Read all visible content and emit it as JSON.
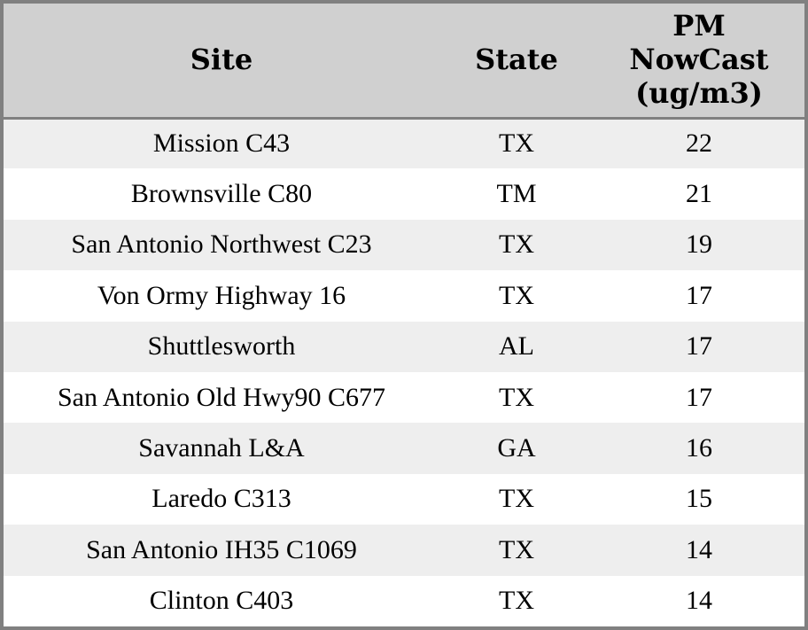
{
  "chart_data": {
    "type": "table",
    "columns": [
      {
        "id": "site",
        "label": "Site"
      },
      {
        "id": "state",
        "label": "State"
      },
      {
        "id": "pm_nowcast",
        "label": "PM\nNowCast\n(ug/m3)"
      }
    ],
    "rows": [
      {
        "site": "Mission C43",
        "state": "TX",
        "pm_nowcast": "22"
      },
      {
        "site": "Brownsville C80",
        "state": "TM",
        "pm_nowcast": "21"
      },
      {
        "site": "San Antonio Northwest C23",
        "state": "TX",
        "pm_nowcast": "19"
      },
      {
        "site": "Von Ormy Highway 16",
        "state": "TX",
        "pm_nowcast": "17"
      },
      {
        "site": "Shuttlesworth",
        "state": "AL",
        "pm_nowcast": "17"
      },
      {
        "site": "San Antonio Old Hwy90 C677",
        "state": "TX",
        "pm_nowcast": "17"
      },
      {
        "site": "Savannah L&A",
        "state": "GA",
        "pm_nowcast": "16"
      },
      {
        "site": "Laredo C313",
        "state": "TX",
        "pm_nowcast": "15"
      },
      {
        "site": "San Antonio IH35 C1069",
        "state": "TX",
        "pm_nowcast": "14"
      },
      {
        "site": "Clinton C403",
        "state": "TX",
        "pm_nowcast": "14"
      }
    ]
  },
  "colors": {
    "header_bg": "#d0d0d0",
    "row_stripe_bg": "#eeeeee",
    "row_bg": "#ffffff",
    "border": "#808080",
    "text": "#000000"
  }
}
